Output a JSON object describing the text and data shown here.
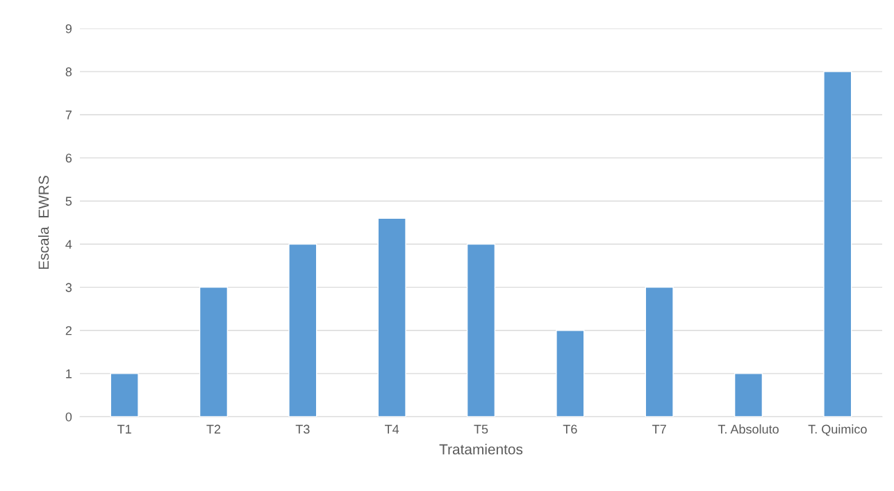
{
  "chart_data": {
    "type": "bar",
    "xlabel": "Tratamientos",
    "ylabel": "Escala  EWRS",
    "categories": [
      "T1",
      "T2",
      "T3",
      "T4",
      "T5",
      "T6",
      "T7",
      "T. Absoluto",
      "T. Quimico"
    ],
    "values": [
      1,
      3,
      4,
      4.6,
      4,
      2,
      3,
      1,
      8
    ],
    "color": "#5b9bd5",
    "ylim": [
      0,
      9
    ],
    "yticks": [
      0,
      1,
      2,
      3,
      4,
      5,
      6,
      7,
      8,
      9
    ],
    "grid": "y"
  }
}
